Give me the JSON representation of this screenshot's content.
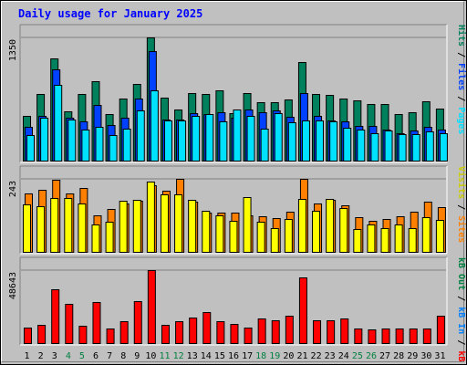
{
  "title": "Daily usage for January 2025",
  "colors": {
    "hits": "#00805c",
    "files": "#0040ff",
    "pages": "#00e0ff",
    "visits": "#ffff00",
    "sites": "#ff8000",
    "kbin": "#0080ff",
    "kbout": "#008040",
    "kbf": "#ff0000",
    "panel": "#c0c0c0",
    "gridline": "#808080",
    "daylabel": "#000000",
    "weekend": "#008040",
    "title": "#0000ff"
  },
  "right_labels": {
    "top": [
      {
        "text": "Pages",
        "color": "#00e0ff"
      },
      {
        "text": " / ",
        "color": "#000000"
      },
      {
        "text": "Files",
        "color": "#0040ff"
      },
      {
        "text": " / ",
        "color": "#000000"
      },
      {
        "text": "Hits",
        "color": "#00805c"
      }
    ],
    "mid": [
      {
        "text": "Sites",
        "color": "#ff8000"
      },
      {
        "text": " / ",
        "color": "#000000"
      },
      {
        "text": "Visits",
        "color": "#cccc00"
      }
    ],
    "bot": [
      {
        "text": "kB F",
        "color": "#ff0000"
      },
      {
        "text": " / ",
        "color": "#000000"
      },
      {
        "text": "kB In",
        "color": "#0080ff"
      },
      {
        "text": " / ",
        "color": "#000000"
      },
      {
        "text": "kB Out",
        "color": "#008040"
      }
    ]
  },
  "chart_data": [
    {
      "type": "bar",
      "name": "daily-hits-files-pages",
      "categories": [
        "1",
        "2",
        "3",
        "4",
        "5",
        "6",
        "7",
        "8",
        "9",
        "10",
        "11",
        "12",
        "13",
        "14",
        "15",
        "16",
        "17",
        "18",
        "19",
        "20",
        "21",
        "22",
        "23",
        "24",
        "25",
        "26",
        "27",
        "28",
        "29",
        "30",
        "31"
      ],
      "weekend_days": [
        "4",
        "5",
        "11",
        "12",
        "18",
        "19",
        "25",
        "26"
      ],
      "ymax_label": "1350",
      "ylim": [
        0,
        1350
      ],
      "series": [
        {
          "name": "Hits",
          "values": [
            490,
            730,
            1120,
            540,
            730,
            870,
            510,
            680,
            840,
            1350,
            690,
            560,
            740,
            730,
            770,
            520,
            740,
            640,
            640,
            670,
            1080,
            730,
            720,
            680,
            660,
            620,
            620,
            510,
            530,
            650,
            570
          ]
        },
        {
          "name": "Files",
          "values": [
            370,
            490,
            1000,
            470,
            430,
            610,
            390,
            470,
            680,
            1200,
            450,
            450,
            520,
            510,
            530,
            470,
            560,
            530,
            550,
            480,
            740,
            490,
            440,
            430,
            380,
            380,
            340,
            300,
            330,
            370,
            340
          ]
        },
        {
          "name": "Pages",
          "values": [
            280,
            470,
            830,
            450,
            340,
            370,
            280,
            350,
            550,
            770,
            440,
            440,
            490,
            510,
            430,
            560,
            490,
            350,
            520,
            420,
            440,
            440,
            430,
            360,
            340,
            300,
            330,
            290,
            290,
            320,
            300
          ]
        }
      ]
    },
    {
      "type": "bar",
      "name": "daily-visits-sites",
      "categories": [
        "1",
        "2",
        "3",
        "4",
        "5",
        "6",
        "7",
        "8",
        "9",
        "10",
        "11",
        "12",
        "13",
        "14",
        "15",
        "16",
        "17",
        "18",
        "19",
        "20",
        "21",
        "22",
        "23",
        "24",
        "25",
        "26",
        "27",
        "28",
        "29",
        "30",
        "31"
      ],
      "ymax_label": "243",
      "ylim": [
        0,
        243
      ],
      "series": [
        {
          "name": "Visits",
          "values": [
            158,
            152,
            178,
            178,
            162,
            90,
            100,
            170,
            172,
            233,
            192,
            190,
            172,
            138,
            120,
            102,
            183,
            100,
            80,
            110,
            175,
            138,
            175,
            145,
            75,
            90,
            80,
            90,
            80,
            115,
            105
          ]
        },
        {
          "name": "Sites",
          "values": [
            193,
            208,
            240,
            195,
            213,
            123,
            143,
            162,
            170,
            223,
            203,
            242,
            168,
            130,
            130,
            130,
            123,
            118,
            112,
            133,
            242,
            162,
            172,
            155,
            115,
            103,
            108,
            118,
            133,
            168,
            148
          ]
        }
      ]
    },
    {
      "type": "bar",
      "name": "daily-kbytes",
      "categories": [
        "1",
        "2",
        "3",
        "4",
        "5",
        "6",
        "7",
        "8",
        "9",
        "10",
        "11",
        "12",
        "13",
        "14",
        "15",
        "16",
        "17",
        "18",
        "19",
        "20",
        "21",
        "22",
        "23",
        "24",
        "25",
        "26",
        "27",
        "28",
        "29",
        "30",
        "31"
      ],
      "ymax_label": "48643",
      "ylim": [
        0,
        48643
      ],
      "series": [
        {
          "name": "kB F",
          "values": [
            10600,
            12200,
            35900,
            26400,
            11800,
            27500,
            9800,
            14400,
            28100,
            48600,
            12200,
            14400,
            17300,
            20600,
            14400,
            13000,
            10600,
            16300,
            15400,
            18300,
            43700,
            15400,
            15400,
            16300,
            9800,
            8900,
            9800,
            9800,
            9800,
            9800,
            18300
          ]
        }
      ]
    }
  ]
}
